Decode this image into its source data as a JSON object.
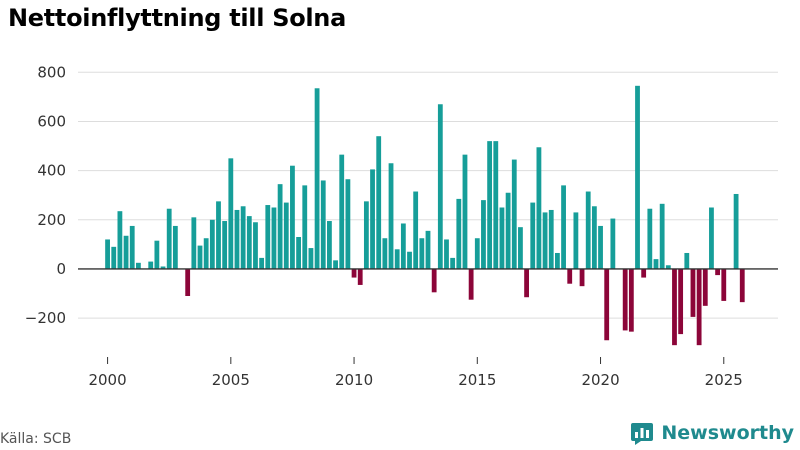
{
  "title": "Nettoinflyttning till Solna",
  "source": "Källa: SCB",
  "brand": "Newsworthy",
  "colors": {
    "positive": "#169e99",
    "negative": "#8c0539",
    "grid": "#dddddd",
    "zero": "#333333",
    "brand": "#1f8a8e"
  },
  "chart_data": {
    "type": "bar",
    "title": "Nettoinflyttning till Solna",
    "xlabel": "",
    "ylabel": "",
    "ylim": [
      -350,
      850
    ],
    "xlim": [
      1998.8,
      2027.2
    ],
    "x_ticks": [
      2000,
      2005,
      2010,
      2015,
      2020,
      2025
    ],
    "x_tick_labels": [
      "2000",
      "2005",
      "2010",
      "2015",
      "2020",
      "2025"
    ],
    "y_ticks": [
      -200,
      0,
      200,
      400,
      600,
      800
    ],
    "y_tick_labels": [
      "−200",
      "0",
      "200",
      "400",
      "600",
      "800"
    ],
    "frequency": "quarterly",
    "x_start": 2000,
    "values": [
      120,
      90,
      235,
      135,
      175,
      25,
      0,
      30,
      115,
      10,
      245,
      175,
      0,
      -110,
      210,
      95,
      125,
      200,
      275,
      195,
      450,
      240,
      255,
      215,
      190,
      45,
      260,
      250,
      345,
      270,
      420,
      130,
      340,
      85,
      735,
      360,
      195,
      35,
      465,
      365,
      -35,
      -65,
      275,
      405,
      540,
      125,
      430,
      80,
      185,
      70,
      315,
      125,
      155,
      -95,
      670,
      120,
      45,
      285,
      465,
      -125,
      125,
      280,
      520,
      520,
      250,
      310,
      445,
      170,
      -115,
      270,
      495,
      230,
      240,
      65,
      340,
      -60,
      230,
      -70,
      315,
      255,
      175,
      -290,
      205,
      0,
      -250,
      -255,
      745,
      -35,
      245,
      40,
      265,
      15,
      -310,
      -265,
      65,
      -195,
      -310,
      -150,
      250,
      -25,
      -130,
      0,
      305,
      -135
    ]
  }
}
